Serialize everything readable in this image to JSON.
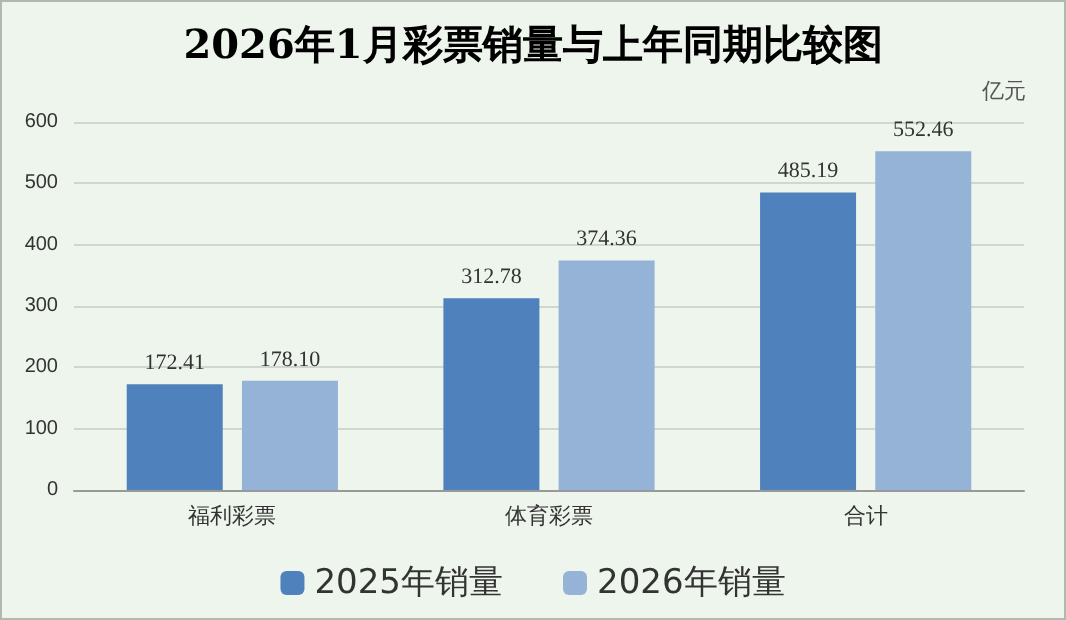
{
  "chart_data": {
    "type": "bar",
    "title": "2026年1月彩票销量与上年同期比较图",
    "ylabel": "亿元",
    "categories": [
      "福利彩票",
      "体育彩票",
      "合计"
    ],
    "series": [
      {
        "name": "2025年销量",
        "color": "#4f81bd",
        "values": [
          172.41,
          312.78,
          485.19
        ],
        "value_labels": [
          "172.41",
          "312.78",
          "485.19"
        ]
      },
      {
        "name": "2026年销量",
        "color": "#95b3d7",
        "values": [
          178.1,
          374.36,
          552.46
        ],
        "value_labels": [
          "178.10",
          "374.36",
          "552.46"
        ]
      }
    ],
    "ylim": [
      0,
      600
    ],
    "yticks": [
      0,
      100,
      200,
      300,
      400,
      500,
      600
    ],
    "grid": "y",
    "legend": "bottom"
  }
}
